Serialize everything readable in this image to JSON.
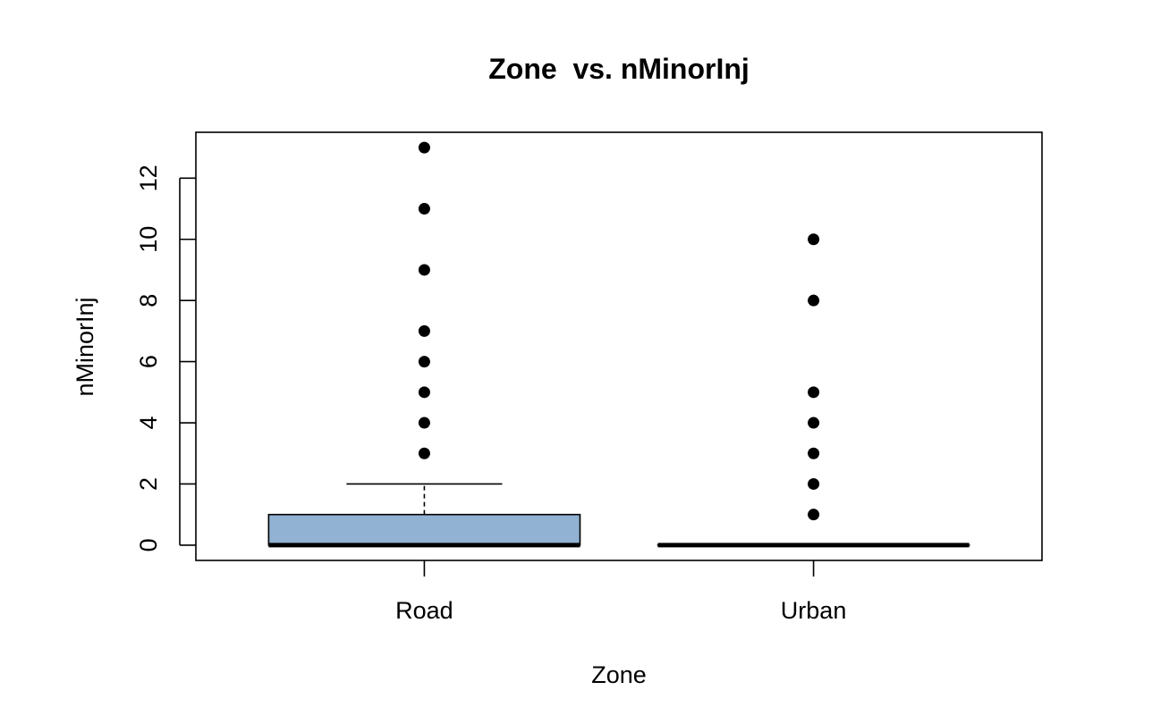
{
  "chart_data": {
    "type": "boxplot",
    "title": "Zone  vs. nMinorInj",
    "xlabel": "Zone",
    "ylabel": "nMinorInj",
    "categories": [
      "Road",
      "Urban"
    ],
    "ylim": [
      -0.5,
      13.5
    ],
    "y_ticks": [
      0,
      2,
      4,
      6,
      8,
      10,
      12
    ],
    "y_tick_labels": [
      "0",
      "2",
      "4",
      "6",
      "8",
      "10",
      "12"
    ],
    "grid": false,
    "box_fill": "#91B2D2",
    "boxes": [
      {
        "category": "Road",
        "whisker_low": 0,
        "q1": 0,
        "median": 0,
        "q3": 1,
        "whisker_high": 2,
        "outliers": [
          3,
          4,
          5,
          6,
          7,
          9,
          11,
          13
        ]
      },
      {
        "category": "Urban",
        "whisker_low": 0,
        "q1": 0,
        "median": 0,
        "q3": 0,
        "whisker_high": 0,
        "outliers": [
          1,
          2,
          3,
          4,
          5,
          8,
          10
        ]
      }
    ]
  }
}
